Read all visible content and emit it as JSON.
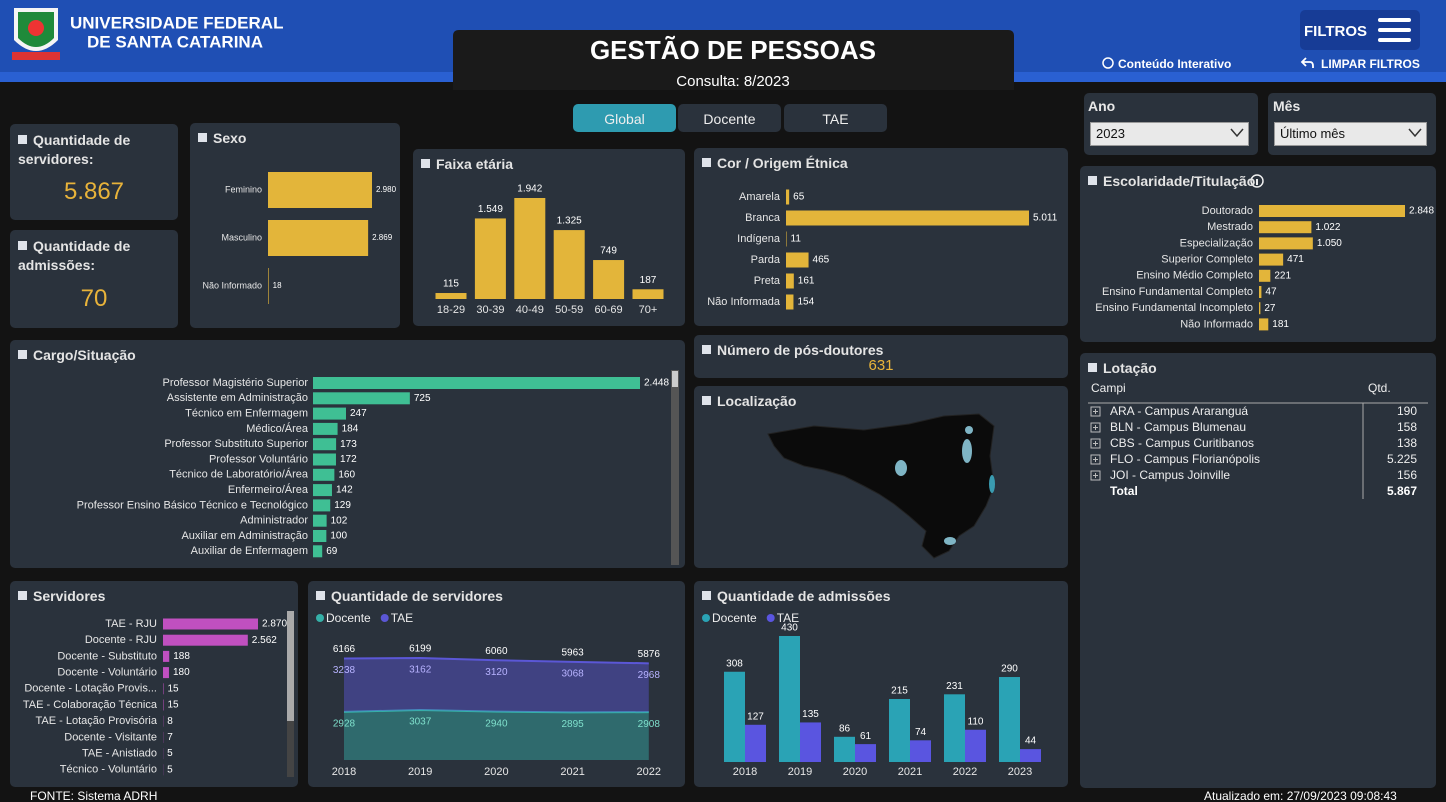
{
  "header": {
    "university_line1": "UNIVERSIDADE FEDERAL",
    "university_line2": "DE SANTA CATARINA",
    "title": "GESTÃO DE PESSOAS",
    "subtitle": "Consulta: 8/2023",
    "filters": "FILTROS",
    "interactive": "Conteúdo Interativo",
    "clear_filters": "LIMPAR FILTROS"
  },
  "tabs": [
    "Global",
    "Docente",
    "TAE"
  ],
  "filters": {
    "year": {
      "label": "Ano",
      "value": "2023"
    },
    "month": {
      "label": "Mês",
      "value": "Último mês"
    }
  },
  "kpis": [
    {
      "title": "Quantidade de servidores:",
      "value": 5867,
      "value_label": "5.867"
    },
    {
      "title": "Quantidade de admissões:",
      "value": 70
    }
  ],
  "chart_data": [
    {
      "type": "bar",
      "orientation": "horizontal",
      "title": "Sexo",
      "categories": [
        "Feminino",
        "Masculino",
        "Não Informado"
      ],
      "values": [
        2980,
        2869,
        18
      ],
      "value_labels": [
        "2.980",
        "2.869",
        "18"
      ],
      "color": "#e3b53a"
    },
    {
      "type": "bar",
      "orientation": "vertical",
      "title": "Faixa etária",
      "categories": [
        "18-29",
        "30-39",
        "40-49",
        "50-59",
        "60-69",
        "70+"
      ],
      "values": [
        115,
        1549,
        1942,
        1325,
        749,
        187
      ],
      "value_labels": [
        "115",
        "1.549",
        "1.942",
        "1.325",
        "749",
        "187"
      ],
      "color": "#e3b53a"
    },
    {
      "type": "bar",
      "orientation": "horizontal",
      "title": "Cor / Origem Étnica",
      "categories": [
        "Amarela",
        "Branca",
        "Indígena",
        "Parda",
        "Preta",
        "Não Informada"
      ],
      "values": [
        65,
        5011,
        11,
        465,
        161,
        154
      ],
      "value_labels": [
        "65",
        "5.011",
        "11",
        "465",
        "161",
        "154"
      ],
      "color": "#e3b53a"
    },
    {
      "type": "bar",
      "orientation": "horizontal",
      "title": "Escolaridade/Titulação",
      "categories": [
        "Doutorado",
        "Mestrado",
        "Especialização",
        "Superior Completo",
        "Ensino Médio Completo",
        "Ensino Fundamental Completo",
        "Ensino Fundamental Incompleto",
        "Não Informado"
      ],
      "values": [
        2848,
        1022,
        1050,
        471,
        221,
        47,
        27,
        181
      ],
      "value_labels": [
        "2.848",
        "1.022",
        "1.050",
        "471",
        "221",
        "47",
        "27",
        "181"
      ],
      "color": "#e3b53a"
    },
    {
      "type": "bar",
      "orientation": "horizontal",
      "title": "Cargo/Situação",
      "categories": [
        "Professor Magistério Superior",
        "Assistente em Administração",
        "Técnico em Enfermagem",
        "Médico/Área",
        "Professor Substituto Superior",
        "Professor Voluntário",
        "Técnico de Laboratório/Área",
        "Enfermeiro/Área",
        "Professor Ensino Básico Técnico e Tecnológico",
        "Administrador",
        "Auxiliar em Administração",
        "Auxiliar de Enfermagem"
      ],
      "values": [
        2448,
        725,
        247,
        184,
        173,
        172,
        160,
        142,
        129,
        102,
        100,
        69
      ],
      "value_labels": [
        "2.448",
        "725",
        "247",
        "184",
        "173",
        "172",
        "160",
        "142",
        "129",
        "102",
        "100",
        "69"
      ],
      "color": "#3fbf94"
    },
    {
      "type": "bar",
      "orientation": "horizontal",
      "title": "Servidores",
      "categories": [
        "TAE - RJU",
        "Docente - RJU",
        "Docente - Substituto",
        "Docente - Voluntário",
        "Docente - Lotação Provis...",
        "TAE - Colaboração Técnica",
        "TAE - Lotação Provisória",
        "Docente - Visitante",
        "TAE - Anistiado",
        "Técnico - Voluntário"
      ],
      "values": [
        2870,
        2562,
        188,
        180,
        15,
        15,
        8,
        7,
        5,
        5
      ],
      "value_labels": [
        "2.870",
        "2.562",
        "188",
        "180",
        "15",
        "15",
        "8",
        "7",
        "5",
        "5"
      ],
      "color": "#c050c0"
    },
    {
      "type": "area",
      "stacked": true,
      "title": "Quantidade de servidores",
      "categories": [
        "2018",
        "2019",
        "2020",
        "2021",
        "2022"
      ],
      "series": [
        {
          "name": "Docente",
          "color": "#35b0a8",
          "values": [
            2928,
            3037,
            2940,
            2895,
            2908
          ]
        },
        {
          "name": "TAE",
          "color": "#5b57d6",
          "values": [
            3238,
            3162,
            3120,
            3068,
            2968
          ]
        }
      ],
      "totals": [
        6166,
        6199,
        6060,
        5963,
        5876
      ]
    },
    {
      "type": "bar",
      "orientation": "vertical",
      "title": "Quantidade de admissões",
      "categories": [
        "2018",
        "2019",
        "2020",
        "2021",
        "2022",
        "2023"
      ],
      "series": [
        {
          "name": "Docente",
          "color": "#2aa3b5",
          "values": [
            308,
            430,
            86,
            215,
            231,
            290
          ]
        },
        {
          "name": "TAE",
          "color": "#5a55e0",
          "values": [
            127,
            135,
            61,
            74,
            110,
            44
          ]
        }
      ]
    }
  ],
  "postdocs": {
    "title": "Número de pós-doutores",
    "value": 631
  },
  "map": {
    "title": "Localização"
  },
  "lotacao": {
    "title": "Lotação",
    "columns": [
      "Campi",
      "Qtd."
    ],
    "rows": [
      {
        "campus": "ARA - Campus Araranguá",
        "value": 190
      },
      {
        "campus": "BLN - Campus Blumenau",
        "value": 158
      },
      {
        "campus": "CBS - Campus Curitibanos",
        "value": 138
      },
      {
        "campus": "FLO - Campus Florianópolis",
        "value": 5225,
        "value_label": "5.225"
      },
      {
        "campus": "JOI - Campus Joinville",
        "value": 156
      }
    ],
    "total": {
      "label": "Total",
      "value": 5867,
      "value_label": "5.867"
    }
  },
  "footer": {
    "source": "FONTE: Sistema ADRH",
    "updated": "Atualizado em: 27/09/2023 09:08:43"
  }
}
